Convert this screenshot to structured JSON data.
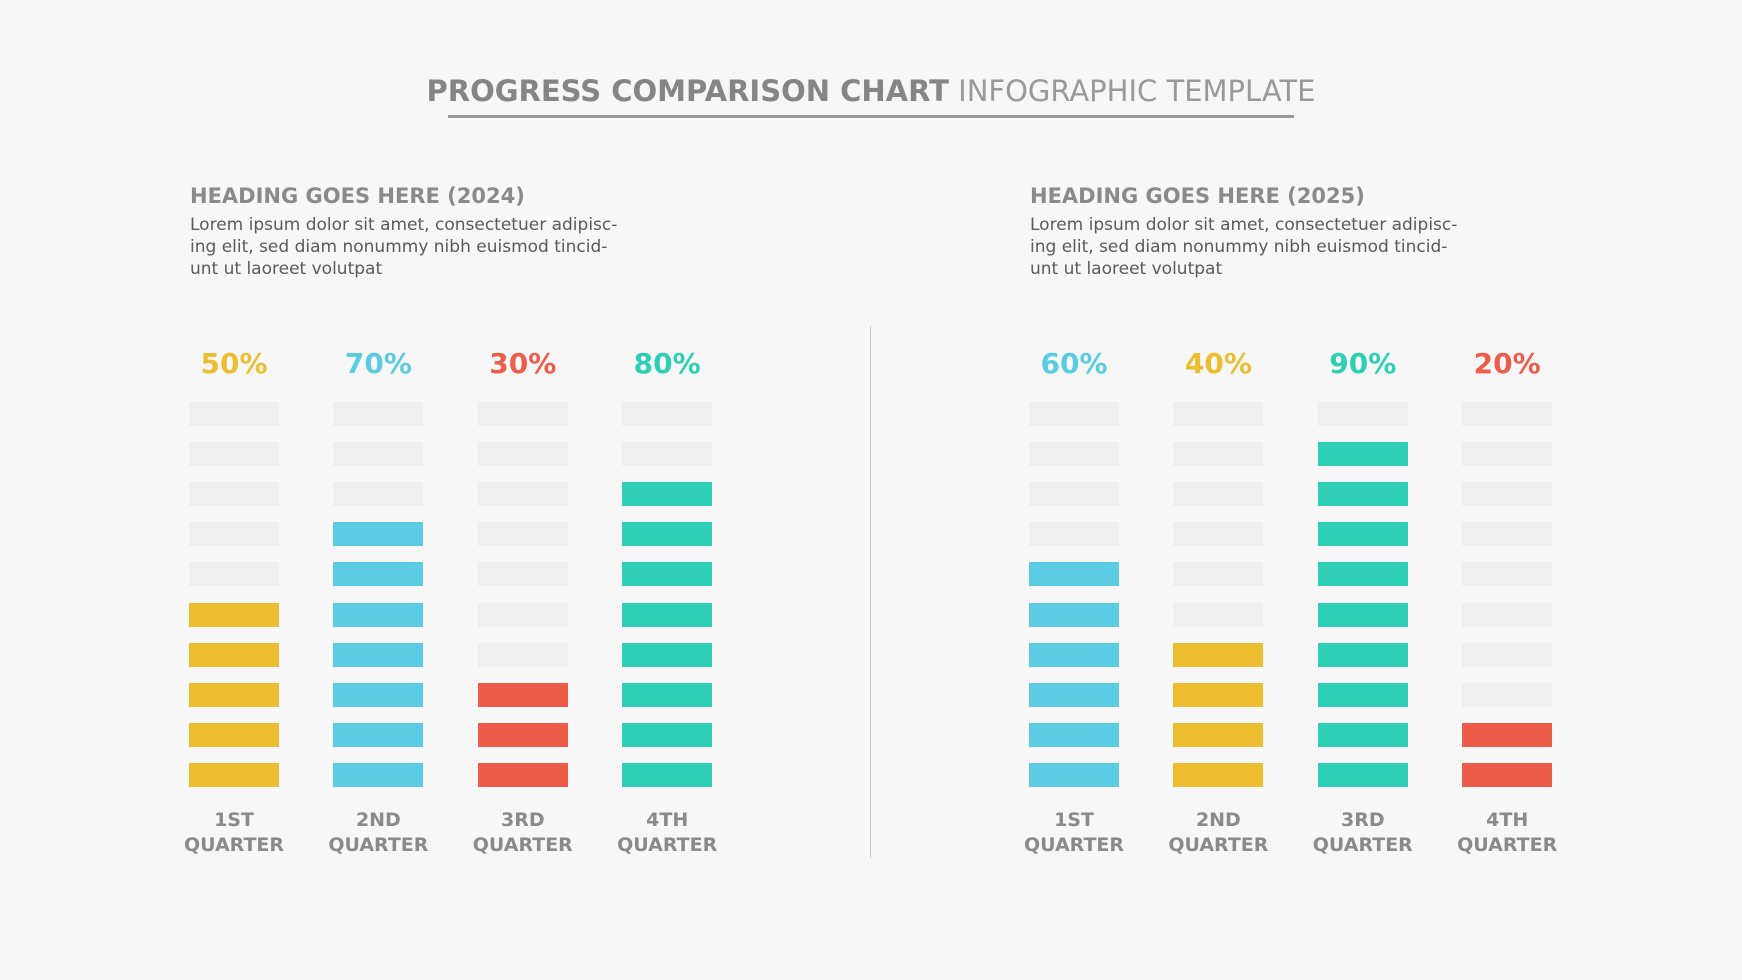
{
  "title": {
    "bold": "PROGRESS COMPARISON CHART",
    "light": "INFOGRAPHIC TEMPLATE"
  },
  "chart_data": [
    {
      "type": "bar",
      "heading": "HEADING GOES HERE (2024)",
      "description": [
        "Lorem ipsum dolor sit amet, consectetuer adipisc-",
        "ing elit, sed diam nonummy nibh euismod tincid-",
        "unt ut laoreet volutpat"
      ],
      "categories": [
        "1ST QUARTER",
        "2ND QUARTER",
        "3RD QUARTER",
        "4TH QUARTER"
      ],
      "values": [
        50,
        70,
        30,
        80
      ],
      "value_labels": [
        "50%",
        "70%",
        "30%",
        "80%"
      ],
      "colors": [
        "#ebbd2f",
        "#5bcbe3",
        "#ee5d4a",
        "#2ecfb4"
      ],
      "ylim": [
        0,
        100
      ]
    },
    {
      "type": "bar",
      "heading": "HEADING GOES HERE (2025)",
      "description": [
        "Lorem ipsum dolor sit amet, consectetuer adipisc-",
        "ing elit, sed diam nonummy nibh euismod tincid-",
        "unt ut laoreet volutpat"
      ],
      "categories": [
        "1ST QUARTER",
        "2ND QUARTER",
        "3RD QUARTER",
        "4TH QUARTER"
      ],
      "values": [
        60,
        40,
        90,
        20
      ],
      "value_labels": [
        "60%",
        "40%",
        "90%",
        "20%"
      ],
      "colors": [
        "#5bcbe3",
        "#ebbd2f",
        "#2ecfb4",
        "#ee5d4a"
      ],
      "ylim": [
        0,
        100
      ]
    }
  ]
}
